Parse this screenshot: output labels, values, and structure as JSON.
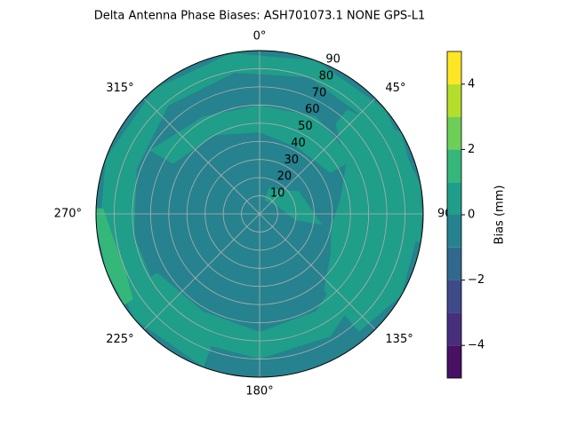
{
  "chart_data": {
    "type": "polar_contour",
    "title": "Delta Antenna Phase Biases: ASH701073.1     NONE GPS-L1",
    "rlim": [
      0,
      90
    ],
    "rticks": [
      10,
      20,
      30,
      40,
      50,
      60,
      70,
      80,
      90
    ],
    "thetaticks": [
      {
        "value": 0,
        "label": "0°"
      },
      {
        "value": 45,
        "label": "45°"
      },
      {
        "value": 90,
        "label": "90°"
      },
      {
        "value": 135,
        "label": "135°"
      },
      {
        "value": 180,
        "label": "180°"
      },
      {
        "value": 225,
        "label": "225°"
      },
      {
        "value": 270,
        "label": "270°"
      },
      {
        "value": 315,
        "label": "315°"
      }
    ],
    "grid": true,
    "base_value": -0.5,
    "regions": [
      {
        "value": 0.5,
        "az": [
          200,
          230,
          260,
          290,
          320,
          350,
          20,
          50,
          80,
          100,
          100,
          80,
          50,
          20,
          350,
          320,
          290,
          260,
          230,
          200
        ],
        "r": [
          90,
          90,
          90,
          90,
          90,
          90,
          90,
          90,
          90,
          90,
          78,
          78,
          79,
          80,
          79,
          78,
          72,
          70,
          72,
          78
        ]
      },
      {
        "value": 0.5,
        "az": [
          40,
          60,
          90,
          120,
          140,
          140,
          120,
          100,
          80,
          60,
          40
        ],
        "r": [
          75,
          90,
          90,
          90,
          85,
          55,
          45,
          40,
          45,
          55,
          65
        ]
      },
      {
        "value": 0.5,
        "az": [
          300,
          330,
          0,
          30,
          60,
          60,
          30,
          0,
          330,
          300
        ],
        "r": [
          70,
          62,
          60,
          62,
          60,
          45,
          42,
          45,
          50,
          55
        ]
      },
      {
        "value": 0.5,
        "az": [
          120,
          150,
          180,
          210,
          240,
          240,
          210,
          180,
          150,
          120
        ],
        "r": [
          70,
          78,
          80,
          80,
          78,
          65,
          62,
          65,
          62,
          55
        ]
      },
      {
        "value": 0.5,
        "az": [
          20,
          60,
          100,
          100,
          60,
          20
        ],
        "r": [
          15,
          25,
          35,
          20,
          10,
          8
        ]
      },
      {
        "value": 1.5,
        "az": [
          236,
          250,
          265,
          272,
          272,
          262,
          248,
          236
        ],
        "r": [
          90,
          90,
          90,
          90,
          86,
          82,
          80,
          84
        ]
      }
    ],
    "colorbar": {
      "label": "Bias (mm)",
      "lim": [
        -5,
        5
      ],
      "levels": [
        -5,
        -4,
        -3,
        -2,
        -1,
        0,
        1,
        2,
        3,
        4,
        5
      ],
      "colors": [
        "#471164",
        "#472f7d",
        "#3e4a89",
        "#31688e",
        "#26828e",
        "#1f9e89",
        "#35b779",
        "#6ece58",
        "#b5de2b",
        "#fde725"
      ],
      "ticks": [
        {
          "value": -4,
          "label": "−4"
        },
        {
          "value": -2,
          "label": "−2"
        },
        {
          "value": 0,
          "label": "0"
        },
        {
          "value": 2,
          "label": "2"
        },
        {
          "value": 4,
          "label": "4"
        }
      ]
    }
  }
}
